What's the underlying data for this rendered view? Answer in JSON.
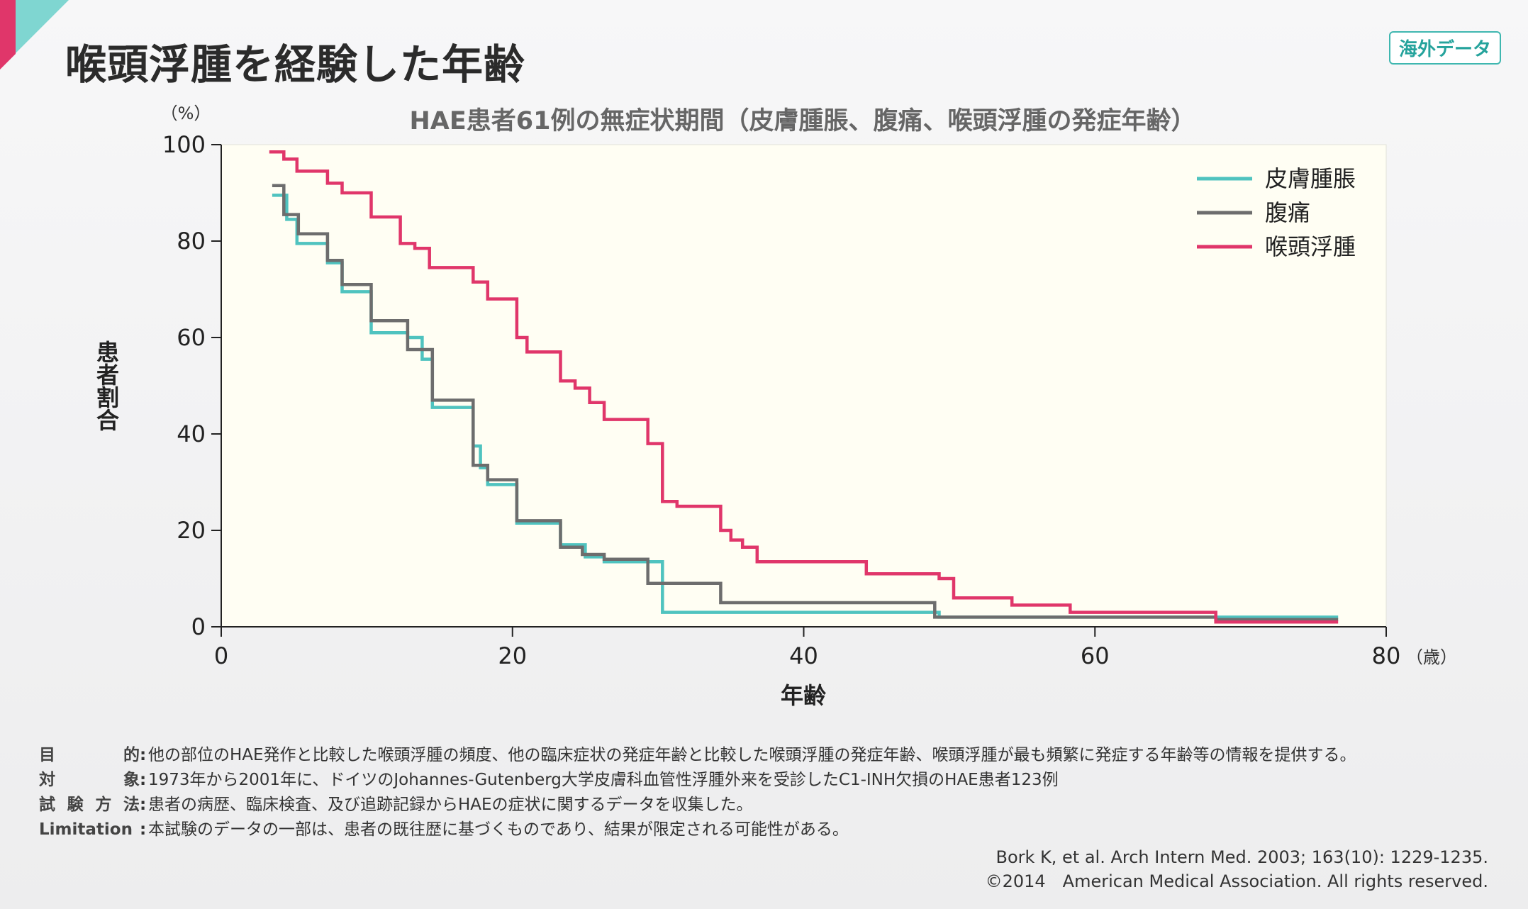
{
  "header": {
    "title": "喉頭浮腫を経験した年齢",
    "tag": "海外データ"
  },
  "colors": {
    "accent_pink": "#e0366a",
    "accent_teal": "#4fc3bf",
    "series_skin": "#4fc3bf",
    "series_abdomen": "#6d6d6d",
    "series_larynx": "#e0366a",
    "plot_bg": "#fffef3"
  },
  "chart_data": {
    "type": "line",
    "title": "HAE患者61例の無症状期間（皮膚腫脹、腹痛、喉頭浮腫の発症年齢）",
    "xlabel": "年齢",
    "ylabel": "患者割合",
    "x_unit": "（歳）",
    "y_unit": "（%）",
    "xlim": [
      0,
      80
    ],
    "ylim": [
      0,
      100
    ],
    "xticks": [
      0,
      20,
      40,
      60,
      80
    ],
    "yticks": [
      0,
      20,
      40,
      60,
      80,
      100
    ],
    "grid": false,
    "legend_position": "top-right",
    "step": true,
    "series": [
      {
        "name": "皮膚腫脹",
        "x": [
          3.5,
          4.5,
          5.2,
          7.3,
          8.3,
          10.3,
          12.8,
          13.8,
          14.5,
          17.3,
          17.8,
          18.3,
          20.3,
          23.3,
          25.0,
          26.3,
          30.3,
          49.3,
          68.3,
          76.7
        ],
        "y": [
          89.5,
          84.5,
          79.5,
          75.5,
          69.5,
          61.0,
          60.0,
          55.5,
          45.5,
          37.5,
          33.0,
          29.5,
          21.5,
          17.0,
          14.5,
          13.5,
          3.0,
          2.0,
          2.0,
          2.0
        ]
      },
      {
        "name": "腹痛",
        "x": [
          3.5,
          4.3,
          5.3,
          7.3,
          8.3,
          10.3,
          12.8,
          14.5,
          17.3,
          18.3,
          20.3,
          23.3,
          24.8,
          26.3,
          29.3,
          34.3,
          49.0,
          68.3,
          76.7
        ],
        "y": [
          91.5,
          85.5,
          81.5,
          76.0,
          71.0,
          63.5,
          57.5,
          47.0,
          33.5,
          30.5,
          22.0,
          16.5,
          15.0,
          14.0,
          9.0,
          5.0,
          2.0,
          1.5,
          1.5
        ]
      },
      {
        "name": "喉頭浮腫",
        "x": [
          3.3,
          4.3,
          5.2,
          7.3,
          8.3,
          10.3,
          12.3,
          13.3,
          14.3,
          17.3,
          18.3,
          20.3,
          21.0,
          23.3,
          24.3,
          25.3,
          26.3,
          29.3,
          30.3,
          31.3,
          34.3,
          35.0,
          35.8,
          36.8,
          44.3,
          49.3,
          50.3,
          54.3,
          58.3,
          68.3,
          76.7
        ],
        "y": [
          98.5,
          97.0,
          94.5,
          92.0,
          90.0,
          85.0,
          79.5,
          78.5,
          74.5,
          71.5,
          68.0,
          60.0,
          57.0,
          51.0,
          49.5,
          46.5,
          43.0,
          38.0,
          26.0,
          25.0,
          20.0,
          18.0,
          16.5,
          13.5,
          11.0,
          10.0,
          6.0,
          4.5,
          3.0,
          1.0,
          1.0
        ]
      }
    ]
  },
  "notes": [
    {
      "label": "目的",
      "text": "他の部位のHAE発作と比較した喉頭浮腫の頻度、他の臨床症状の発症年齢と比較した喉頭浮腫の発症年齢、喉頭浮腫が最も頻繁に発症する年齢等の情報を提供する。"
    },
    {
      "label": "対象",
      "text": "1973年から2001年に、ドイツのJohannes-Gutenberg大学皮膚科血管性浮腫外来を受診したC1-INH欠損のHAE患者123例"
    },
    {
      "label": "試験方法",
      "text": "患者の病歴、臨床検査、及び追跡記録からHAEの症状に関するデータを収集した。"
    },
    {
      "label": "Limitation",
      "text": "本試験のデータの一部は、患者の既往歴に基づくものであり、結果が限定される可能性がある。"
    }
  ],
  "citation": {
    "line1": "Bork K, et al. Arch Intern Med. 2003; 163(10): 1229-1235.",
    "line2": "©2014　American Medical Association. All rights reserved."
  }
}
